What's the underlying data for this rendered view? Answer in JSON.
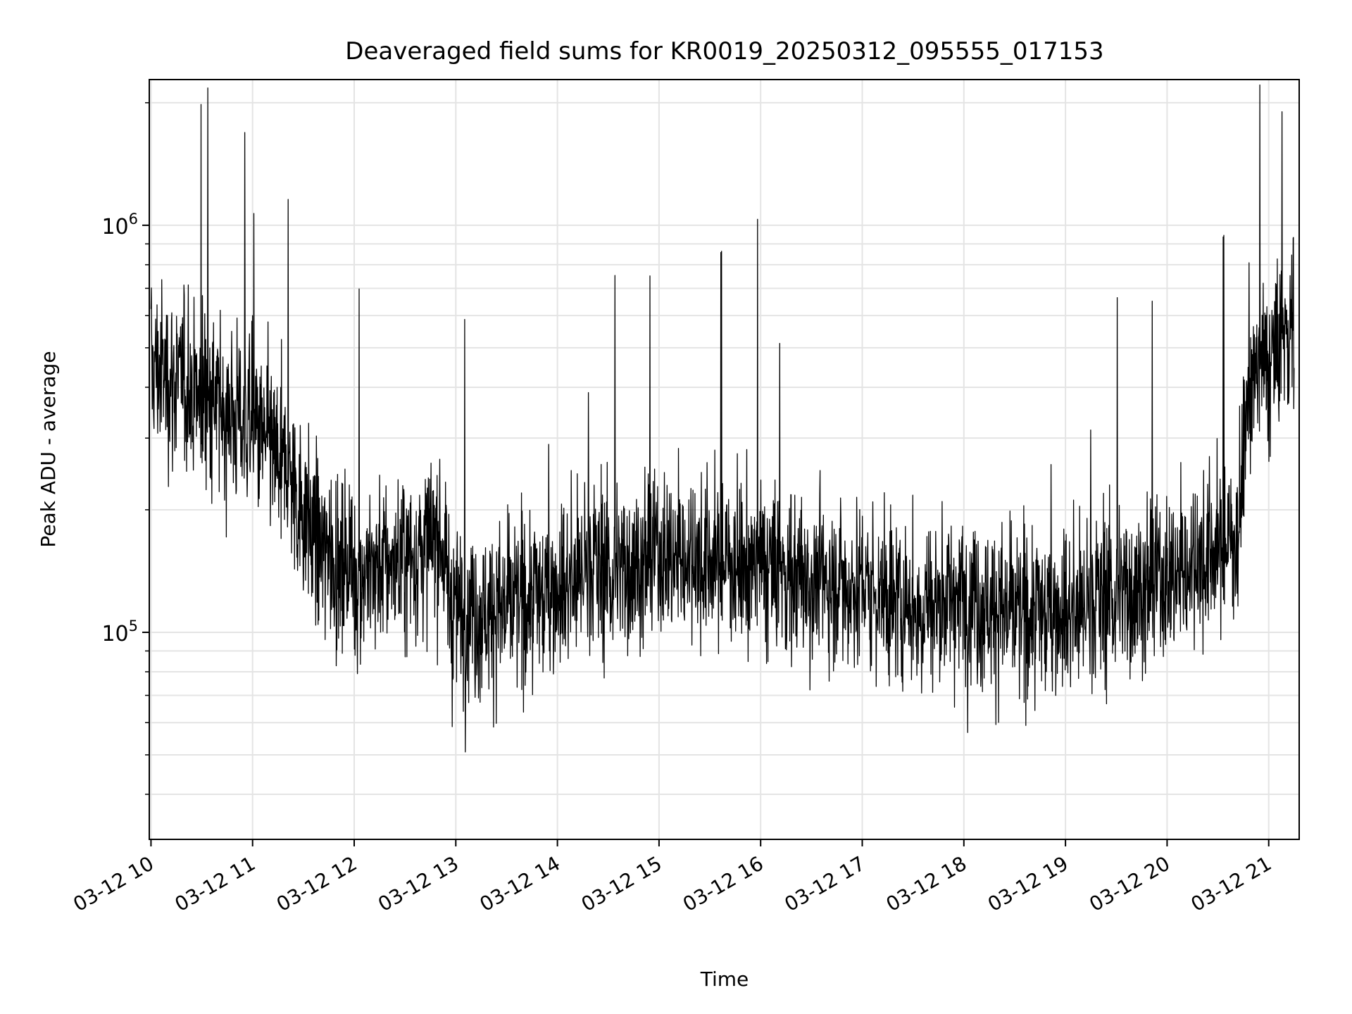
{
  "chart_data": {
    "type": "line",
    "title": "Deaveraged field sums for KR0019_20250312_095555_017153",
    "xlabel": "Time",
    "ylabel": "Peak ADU - average",
    "yscale": "log",
    "grid": true,
    "x_ticks": [
      "03-12 10",
      "03-12 11",
      "03-12 12",
      "03-12 13",
      "03-12 14",
      "03-12 15",
      "03-12 16",
      "03-12 17",
      "03-12 18",
      "03-12 19",
      "03-12 20",
      "03-12 21"
    ],
    "y_ticks": [
      {
        "base": "10",
        "exp": "5",
        "value": 100000
      },
      {
        "base": "10",
        "exp": "6",
        "value": 1000000
      }
    ],
    "xlim": [
      "2025-03-12 09:59",
      "2025-03-12 21:18"
    ],
    "ylim": [
      31000,
      2280000
    ],
    "line_color": "#000000",
    "series": [
      {
        "x": [
          "2025-03-12 10:00",
          "2025-03-12 10:30",
          "2025-03-12 11:00",
          "2025-03-12 11:20",
          "2025-03-12 11:40",
          "2025-03-12 12:00",
          "2025-03-12 12:30",
          "2025-03-12 12:50",
          "2025-03-12 13:00",
          "2025-03-12 13:30",
          "2025-03-12 14:00",
          "2025-03-12 14:20",
          "2025-03-12 14:30",
          "2025-03-12 15:00",
          "2025-03-12 15:30",
          "2025-03-12 16:00",
          "2025-03-12 16:30",
          "2025-03-12 17:00",
          "2025-03-12 17:30",
          "2025-03-12 18:00",
          "2025-03-12 18:30",
          "2025-03-12 19:00",
          "2025-03-12 19:30",
          "2025-03-12 20:00",
          "2025-03-12 20:30",
          "2025-03-12 20:42",
          "2025-03-12 20:48",
          "2025-03-12 21:00",
          "2025-03-12 21:15"
        ],
        "y": [
          450000,
          380000,
          320000,
          250000,
          160000,
          140000,
          150000,
          170000,
          110000,
          115000,
          130000,
          150000,
          140000,
          155000,
          150000,
          145000,
          135000,
          130000,
          115000,
          125000,
          110000,
          115000,
          125000,
          135000,
          160000,
          170000,
          420000,
          450000,
          600000
        ]
      }
    ]
  }
}
